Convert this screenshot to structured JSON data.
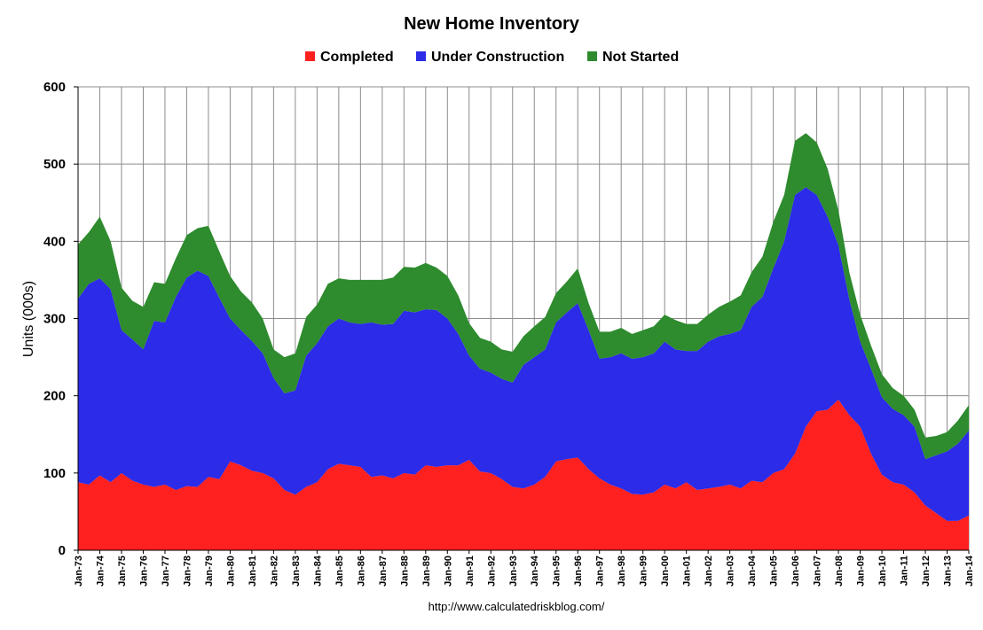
{
  "chart_data": {
    "type": "area",
    "stacked": true,
    "title": "New Home Inventory",
    "xlabel": "",
    "ylabel": "Units (000s)",
    "source_note": "http://www.calculatedriskblog.com/",
    "ylim": [
      0,
      600
    ],
    "yticks": [
      "0",
      "100",
      "200",
      "300",
      "400",
      "500",
      "600"
    ],
    "grid": true,
    "legend_position": "top-center",
    "x_range": [
      1973.0,
      2014.0
    ],
    "x_tick_labels": [
      "Jan-73",
      "Jan-74",
      "Jan-75",
      "Jan-76",
      "Jan-77",
      "Jan-78",
      "Jan-79",
      "Jan-80",
      "Jan-81",
      "Jan-82",
      "Jan-83",
      "Jan-84",
      "Jan-85",
      "Jan-86",
      "Jan-87",
      "Jan-88",
      "Jan-89",
      "Jan-90",
      "Jan-91",
      "Jan-92",
      "Jan-93",
      "Jan-94",
      "Jan-95",
      "Jan-96",
      "Jan-97",
      "Jan-98",
      "Jan-99",
      "Jan-00",
      "Jan-01",
      "Jan-02",
      "Jan-03",
      "Jan-04",
      "Jan-05",
      "Jan-06",
      "Jan-07",
      "Jan-08",
      "Jan-09",
      "Jan-10",
      "Jan-11",
      "Jan-12",
      "Jan-13",
      "Jan-14"
    ],
    "x": [
      1973.0,
      1973.5,
      1974.0,
      1974.5,
      1975.0,
      1975.5,
      1976.0,
      1976.5,
      1977.0,
      1977.5,
      1978.0,
      1978.5,
      1979.0,
      1979.5,
      1980.0,
      1980.5,
      1981.0,
      1981.5,
      1982.0,
      1982.5,
      1983.0,
      1983.5,
      1984.0,
      1984.5,
      1985.0,
      1985.5,
      1986.0,
      1986.5,
      1987.0,
      1987.5,
      1988.0,
      1988.5,
      1989.0,
      1989.5,
      1990.0,
      1990.5,
      1991.0,
      1991.5,
      1992.0,
      1992.5,
      1993.0,
      1993.5,
      1994.0,
      1994.5,
      1995.0,
      1995.5,
      1996.0,
      1996.5,
      1997.0,
      1997.5,
      1998.0,
      1998.5,
      1999.0,
      1999.5,
      2000.0,
      2000.5,
      2001.0,
      2001.5,
      2002.0,
      2002.5,
      2003.0,
      2003.5,
      2004.0,
      2004.5,
      2005.0,
      2005.5,
      2006.0,
      2006.5,
      2007.0,
      2007.5,
      2008.0,
      2008.5,
      2009.0,
      2009.5,
      2010.0,
      2010.5,
      2011.0,
      2011.5,
      2012.0,
      2012.5,
      2013.0,
      2013.5,
      2014.0
    ],
    "series": [
      {
        "name": "Completed",
        "color": "#ff2020",
        "values": [
          88,
          85,
          97,
          88,
          100,
          90,
          85,
          82,
          85,
          78,
          83,
          82,
          95,
          92,
          115,
          110,
          103,
          100,
          93,
          78,
          72,
          82,
          88,
          105,
          112,
          110,
          108,
          95,
          97,
          93,
          100,
          98,
          110,
          108,
          110,
          110,
          117,
          102,
          100,
          92,
          82,
          80,
          85,
          95,
          115,
          118,
          120,
          105,
          93,
          85,
          80,
          73,
          72,
          75,
          85,
          80,
          88,
          78,
          80,
          82,
          85,
          80,
          90,
          88,
          100,
          105,
          125,
          160,
          180,
          182,
          195,
          175,
          160,
          125,
          98,
          88,
          85,
          75,
          58,
          48,
          38,
          38,
          45
        ]
      },
      {
        "name": "Under Construction",
        "color": "#2b2be8",
        "values": [
          238,
          260,
          255,
          250,
          185,
          183,
          175,
          215,
          210,
          250,
          270,
          280,
          260,
          235,
          185,
          175,
          168,
          155,
          130,
          125,
          135,
          170,
          180,
          185,
          188,
          185,
          185,
          200,
          195,
          200,
          210,
          210,
          202,
          203,
          190,
          170,
          135,
          133,
          130,
          130,
          135,
          160,
          165,
          165,
          180,
          190,
          200,
          180,
          155,
          165,
          175,
          175,
          178,
          180,
          185,
          180,
          170,
          180,
          190,
          195,
          195,
          205,
          225,
          240,
          265,
          295,
          335,
          310,
          280,
          250,
          200,
          150,
          110,
          110,
          100,
          95,
          90,
          85,
          60,
          75,
          90,
          100,
          110
        ]
      },
      {
        "name": "Not Started",
        "color": "#2e8b2e",
        "values": [
          70,
          67,
          80,
          62,
          55,
          50,
          55,
          50,
          50,
          50,
          55,
          55,
          65,
          60,
          55,
          50,
          50,
          45,
          37,
          47,
          48,
          50,
          50,
          55,
          52,
          55,
          57,
          55,
          58,
          60,
          57,
          58,
          60,
          55,
          55,
          50,
          42,
          40,
          40,
          38,
          40,
          37,
          40,
          42,
          38,
          40,
          45,
          35,
          35,
          33,
          33,
          32,
          35,
          35,
          35,
          38,
          35,
          35,
          35,
          38,
          42,
          45,
          45,
          52,
          60,
          60,
          70,
          70,
          68,
          62,
          45,
          35,
          35,
          30,
          30,
          27,
          25,
          22,
          28,
          25,
          25,
          30,
          33
        ]
      }
    ]
  }
}
